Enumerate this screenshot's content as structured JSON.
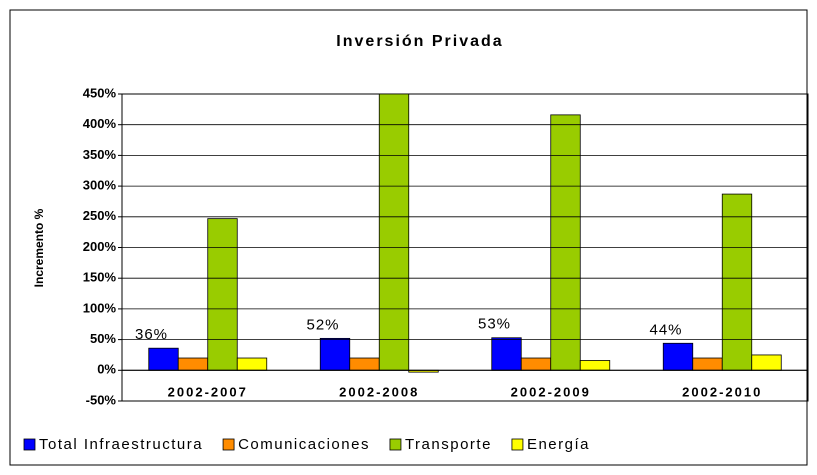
{
  "chart_data": {
    "type": "bar",
    "title": "Inversión Privada",
    "y_label": "Incremento %",
    "categories": [
      "2002-2007",
      "2002-2008",
      "2002-2009",
      "2002-2010"
    ],
    "series": [
      {
        "name": "Total Infraestructura",
        "color": "#0000ff",
        "values": [
          36,
          52,
          53,
          44
        ],
        "value_labels": [
          "36%",
          "52%",
          "53%",
          "44%"
        ]
      },
      {
        "name": "Comunicaciones",
        "color": "#ff8c00",
        "values": [
          20,
          20,
          20,
          20
        ]
      },
      {
        "name": "Transporte",
        "color": "#99cc00",
        "values": [
          247,
          455,
          416,
          287
        ]
      },
      {
        "name": "Energía",
        "color": "#ffff00",
        "values": [
          20,
          -3,
          16,
          25
        ]
      }
    ],
    "ylim": [
      -50,
      450
    ],
    "yticks": [
      {
        "value": -50,
        "label": "-50%"
      },
      {
        "value": 0,
        "label": "0%"
      },
      {
        "value": 50,
        "label": "50%"
      },
      {
        "value": 100,
        "label": "100%"
      },
      {
        "value": 150,
        "label": "150%"
      },
      {
        "value": 200,
        "label": "200%"
      },
      {
        "value": 250,
        "label": "250%"
      },
      {
        "value": 300,
        "label": "300%"
      },
      {
        "value": 350,
        "label": "350%"
      },
      {
        "value": 400,
        "label": "400%"
      },
      {
        "value": 450,
        "label": "450%"
      }
    ],
    "grid": true,
    "legend": "bottom"
  }
}
